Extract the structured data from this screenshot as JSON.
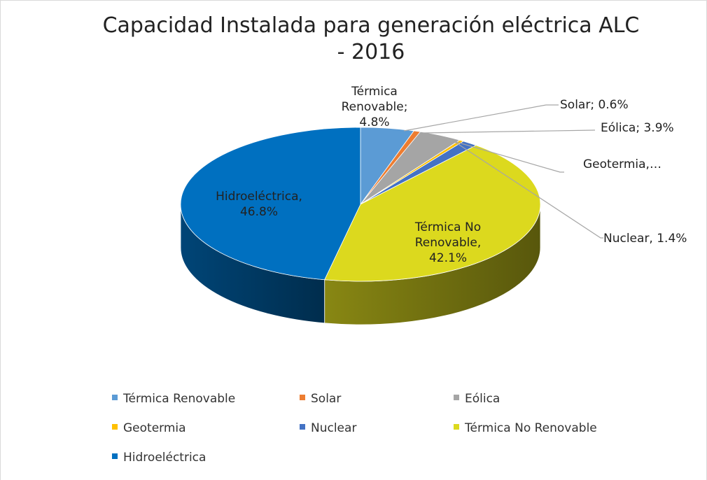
{
  "chart_data": {
    "type": "pie",
    "title": "Capacidad Instalada para generación eléctrica ALC - 2016",
    "categories": [
      "Térmica Renovable",
      "Solar",
      "Eólica",
      "Geotermia",
      "Nuclear",
      "Térmica No Renovable",
      "Hidroeléctrica"
    ],
    "values": [
      4.8,
      0.6,
      3.9,
      0.4,
      1.4,
      42.1,
      46.8
    ],
    "value_labels": [
      "Térmica Renovable; 4.8%",
      "Solar; 0.6%",
      "Eólica; 3.9%",
      "Geotermia,…",
      "Nuclear, 1.4%",
      "Térmica No Renovable, 42.1%",
      "Hidroeléctrica, 46.8%"
    ],
    "colors": [
      "#5b9bd5",
      "#ed7d31",
      "#a5a5a5",
      "#ffc000",
      "#4472c4",
      "#dcd91e",
      "#0070c0"
    ],
    "legend": "bottom",
    "view": "3d"
  }
}
